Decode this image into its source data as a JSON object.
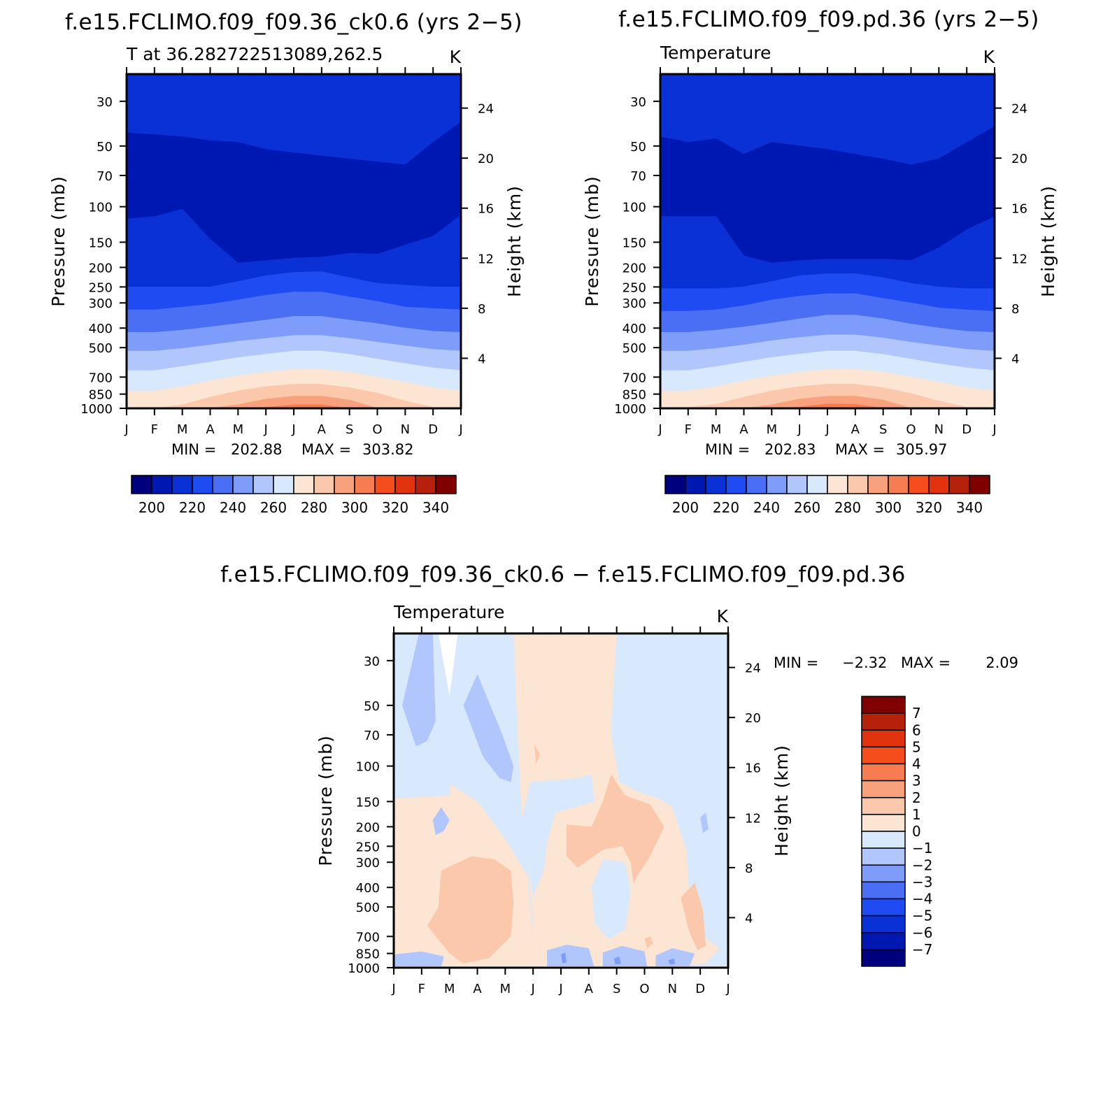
{
  "chart_data": [
    {
      "type": "contour",
      "title": "f.e15.FCLIMO.f09_f09.36_ck0.6 (yrs 2−5)",
      "subtitle_left": "T at 36.282722513089,262.5",
      "subtitle_right": "K",
      "xlabel": "",
      "ylabel": "Pressure (mb)",
      "ylabel_right": "Height (km)",
      "x_ticks": [
        "J",
        "F",
        "M",
        "A",
        "M",
        "J",
        "J",
        "A",
        "S",
        "O",
        "N",
        "D",
        "J"
      ],
      "y_ticks": [
        30,
        50,
        70,
        100,
        150,
        200,
        250,
        300,
        400,
        500,
        700,
        850,
        1000
      ],
      "y_right_ticks": [
        24,
        20,
        16,
        12,
        8,
        4
      ],
      "ylim_mb": [
        1000,
        22
      ],
      "y_scale": "log",
      "min_label": "MIN =",
      "min_value": "202.88",
      "max_label": "MAX =",
      "max_value": "303.82",
      "colorbar_levels": [
        195,
        200,
        205,
        210,
        215,
        220,
        225,
        230,
        235,
        240,
        245,
        250,
        255,
        260,
        265,
        270,
        275,
        280,
        285,
        290,
        295,
        300,
        305,
        310,
        315,
        320,
        325,
        330,
        335,
        340,
        345
      ],
      "colorbar_labels": [
        "200",
        "220",
        "240",
        "260",
        "280",
        "300",
        "320",
        "340"
      ],
      "colorbar_colors": [
        "#00007f",
        "#0018b2",
        "#0a31d6",
        "#1e4cf2",
        "#4a6ff5",
        "#7e9cfa",
        "#b1c6fc",
        "#d8e8fd",
        "#fde5d3",
        "#fbc8ab",
        "#f9a07d",
        "#f77c52",
        "#f64d1c",
        "#e2330f",
        "#b5210a",
        "#800000"
      ],
      "x": [
        0,
        1,
        2,
        3,
        4,
        5,
        6,
        7,
        8,
        9,
        10,
        11,
        12
      ],
      "contour_pressure_mb": {
        "p205": [
          43,
          44,
          45,
          47,
          48,
          52,
          54,
          56,
          58,
          60,
          62,
          48,
          38
        ],
        "p215": [
          115,
          112,
          103,
          145,
          190,
          185,
          180,
          178,
          170,
          172,
          155,
          140,
          110
        ],
        "p225": [
          250,
          250,
          250,
          250,
          235,
          220,
          212,
          210,
          225,
          240,
          245,
          250,
          250
        ],
        "p235": [
          325,
          325,
          315,
          305,
          290,
          275,
          265,
          265,
          280,
          295,
          315,
          320,
          325
        ],
        "p245": [
          420,
          420,
          410,
          395,
          380,
          365,
          350,
          350,
          365,
          380,
          400,
          415,
          420
        ],
        "p255": [
          520,
          520,
          505,
          485,
          465,
          450,
          435,
          435,
          450,
          470,
          490,
          510,
          520
        ],
        "p265": [
          650,
          650,
          620,
          590,
          560,
          540,
          520,
          520,
          540,
          570,
          600,
          630,
          650
        ],
        "p275": [
          820,
          820,
          780,
          730,
          690,
          660,
          640,
          640,
          660,
          700,
          740,
          790,
          820
        ],
        "p285": [
          1000,
          1000,
          960,
          880,
          820,
          780,
          760,
          760,
          790,
          840,
          920,
          990,
          1000
        ],
        "p295": [
          1000,
          1000,
          1000,
          1000,
          960,
          900,
          870,
          870,
          910,
          1000,
          1000,
          1000,
          1000
        ],
        "p300": [
          1000,
          1000,
          1000,
          1000,
          1000,
          990,
          960,
          960,
          1000,
          1000,
          1000,
          1000,
          1000
        ]
      }
    },
    {
      "type": "contour",
      "title": "f.e15.FCLIMO.f09_f09.pd.36 (yrs 2−5)",
      "subtitle_left": "Temperature",
      "subtitle_right": "K",
      "xlabel": "",
      "ylabel": "Pressure (mb)",
      "ylabel_right": "Height (km)",
      "x_ticks": [
        "J",
        "F",
        "M",
        "A",
        "M",
        "J",
        "J",
        "A",
        "S",
        "O",
        "N",
        "D",
        "J"
      ],
      "y_ticks": [
        30,
        50,
        70,
        100,
        150,
        200,
        250,
        300,
        400,
        500,
        700,
        850,
        1000
      ],
      "y_right_ticks": [
        24,
        20,
        16,
        12,
        8,
        4
      ],
      "ylim_mb": [
        1000,
        22
      ],
      "y_scale": "log",
      "min_label": "MIN =",
      "min_value": "202.83",
      "max_label": "MAX =",
      "max_value": "305.97",
      "colorbar_levels": [
        195,
        200,
        205,
        210,
        215,
        220,
        225,
        230,
        235,
        240,
        245,
        250,
        255,
        260,
        265,
        270,
        275,
        280,
        285,
        290,
        295,
        300,
        305,
        310,
        315,
        320,
        325,
        330,
        335,
        340,
        345
      ],
      "colorbar_labels": [
        "200",
        "220",
        "240",
        "260",
        "280",
        "300",
        "320",
        "340"
      ],
      "colorbar_colors": [
        "#00007f",
        "#0018b2",
        "#0a31d6",
        "#1e4cf2",
        "#4a6ff5",
        "#7e9cfa",
        "#b1c6fc",
        "#d8e8fd",
        "#fde5d3",
        "#fbc8ab",
        "#f9a07d",
        "#f77c52",
        "#f64d1c",
        "#e2330f",
        "#b5210a",
        "#800000"
      ],
      "x": [
        0,
        1,
        2,
        3,
        4,
        5,
        6,
        7,
        8,
        9,
        10,
        11,
        12
      ],
      "contour_pressure_mb": {
        "p205": [
          45,
          48,
          46,
          55,
          48,
          50,
          52,
          55,
          58,
          62,
          58,
          48,
          40
        ],
        "p215": [
          112,
          112,
          112,
          175,
          190,
          185,
          182,
          182,
          182,
          185,
          160,
          130,
          112
        ],
        "p225": [
          255,
          255,
          255,
          250,
          235,
          220,
          215,
          215,
          225,
          240,
          250,
          255,
          255
        ],
        "p235": [
          330,
          330,
          325,
          310,
          290,
          278,
          270,
          270,
          285,
          300,
          318,
          325,
          330
        ],
        "p245": [
          420,
          420,
          410,
          395,
          378,
          360,
          345,
          345,
          360,
          382,
          400,
          415,
          420
        ],
        "p255": [
          520,
          520,
          505,
          485,
          462,
          445,
          432,
          432,
          448,
          470,
          490,
          510,
          520
        ],
        "p265": [
          650,
          650,
          622,
          590,
          560,
          538,
          520,
          520,
          540,
          570,
          602,
          630,
          650
        ],
        "p275": [
          820,
          820,
          780,
          730,
          690,
          660,
          640,
          640,
          662,
          700,
          740,
          790,
          820
        ],
        "p285": [
          1000,
          990,
          955,
          880,
          820,
          780,
          760,
          760,
          790,
          845,
          920,
          990,
          1000
        ],
        "p295": [
          1000,
          1000,
          1000,
          1000,
          960,
          900,
          870,
          870,
          910,
          1000,
          1000,
          1000,
          1000
        ],
        "p300": [
          1000,
          1000,
          1000,
          1000,
          1000,
          985,
          950,
          955,
          1000,
          1000,
          1000,
          1000,
          1000
        ]
      }
    },
    {
      "type": "contour",
      "title": "f.e15.FCLIMO.f09_f09.36_ck0.6 − f.e15.FCLIMO.f09_f09.pd.36",
      "subtitle_left": "Temperature",
      "subtitle_right": "K",
      "xlabel": "",
      "ylabel": "Pressure (mb)",
      "ylabel_right": "Height (km)",
      "x_ticks": [
        "J",
        "F",
        "M",
        "A",
        "M",
        "J",
        "J",
        "A",
        "S",
        "O",
        "N",
        "D",
        "J"
      ],
      "y_ticks": [
        30,
        50,
        70,
        100,
        150,
        200,
        250,
        300,
        400,
        500,
        700,
        850,
        1000
      ],
      "y_right_ticks": [
        24,
        20,
        16,
        12,
        8,
        4
      ],
      "ylim_mb": [
        1000,
        22
      ],
      "y_scale": "log",
      "min_label": "MIN =",
      "min_value": "−2.32",
      "max_label": "MAX =",
      "max_value": "2.09",
      "colorbar_levels": [
        -7,
        -6,
        -5,
        -4,
        -3,
        -2,
        -1,
        0,
        1,
        2,
        3,
        4,
        5,
        6,
        7
      ],
      "colorbar_labels": [
        "7",
        "6",
        "5",
        "4",
        "3",
        "2",
        "1",
        "0",
        "−1",
        "−2",
        "−3",
        "−4",
        "−5",
        "−6",
        "−7"
      ],
      "colorbar_colors": [
        "#800000",
        "#b5210a",
        "#e2330f",
        "#f64d1c",
        "#f77c52",
        "#f9a07d",
        "#fbc8ab",
        "#fde5d3",
        "#d8e8fd",
        "#b1c6fc",
        "#7e9cfa",
        "#4a6ff5",
        "#1e4cf2",
        "#0a31d6",
        "#0018b2",
        "#00007f"
      ],
      "regions": [
        {
          "sign": "positive",
          "months": [
            0,
            3
          ],
          "pressure_mb": [
            140,
            1000
          ],
          "value_range": [
            0,
            1
          ]
        },
        {
          "sign": "positive",
          "months": [
            1,
            4
          ],
          "pressure_mb": [
            300,
            900
          ],
          "value_range": [
            1,
            2
          ]
        },
        {
          "sign": "positive",
          "months": [
            4.5,
            8
          ],
          "pressure_mb": [
            22,
            900
          ],
          "value_range": [
            0,
            1
          ]
        },
        {
          "sign": "positive",
          "months": [
            6,
            10
          ],
          "pressure_mb": [
            120,
            300
          ],
          "value_range": [
            1,
            2
          ]
        },
        {
          "sign": "negative",
          "months": [
            0,
            4
          ],
          "pressure_mb": [
            22,
            140
          ],
          "value_range": [
            -1,
            0
          ]
        },
        {
          "sign": "negative",
          "months": [
            0.3,
            1.5
          ],
          "pressure_mb": [
            22,
            70
          ],
          "value_range": [
            -2,
            -1
          ]
        },
        {
          "sign": "negative",
          "months": [
            2.5,
            4.2
          ],
          "pressure_mb": [
            40,
            110
          ],
          "value_range": [
            -2,
            -1
          ]
        },
        {
          "sign": "negative",
          "months": [
            7.5,
            12
          ],
          "pressure_mb": [
            22,
            200
          ],
          "value_range": [
            -1,
            0
          ]
        },
        {
          "sign": "negative",
          "months": [
            5,
            12
          ],
          "pressure_mb": [
            700,
            1000
          ],
          "value_range": [
            -2,
            -1
          ]
        }
      ]
    }
  ]
}
